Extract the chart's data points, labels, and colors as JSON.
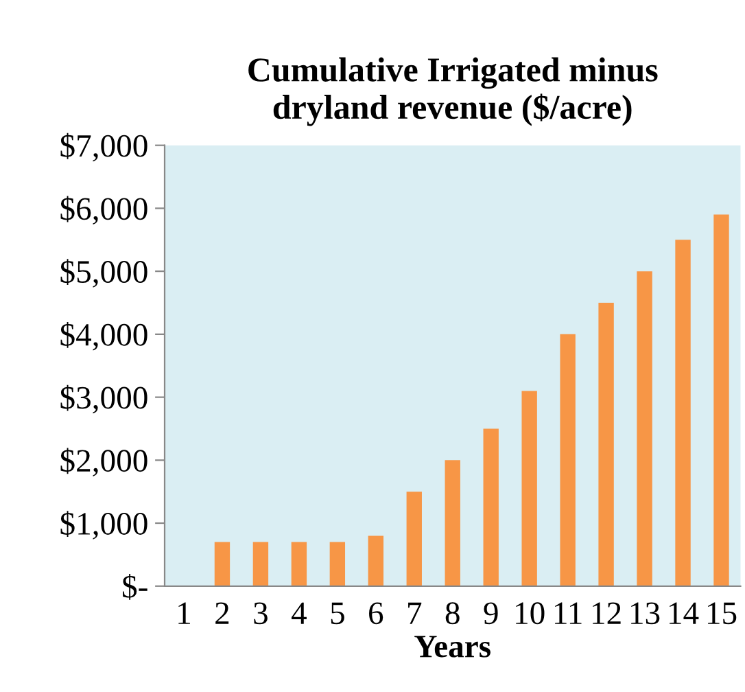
{
  "chart_data": {
    "type": "bar",
    "title": "Cumulative Irrigated minus\ndryland revenue ($/acre)",
    "xlabel": "Years",
    "categories": [
      "1",
      "2",
      "3",
      "4",
      "5",
      "6",
      "7",
      "8",
      "9",
      "10",
      "11",
      "12",
      "13",
      "14",
      "15"
    ],
    "values": [
      0,
      700,
      700,
      700,
      700,
      800,
      1500,
      2000,
      2500,
      3100,
      4000,
      4500,
      5000,
      5500,
      5900
    ],
    "color": "#f79646",
    "ylim": [
      0,
      7000
    ],
    "yticks": [
      {
        "value": 0,
        "label": "$-"
      },
      {
        "value": 1000,
        "label": "$1,000"
      },
      {
        "value": 2000,
        "label": "$2,000"
      },
      {
        "value": 3000,
        "label": "$3,000"
      },
      {
        "value": 4000,
        "label": "$4,000"
      },
      {
        "value": 5000,
        "label": "$5,000"
      },
      {
        "value": 6000,
        "label": "$6,000"
      },
      {
        "value": 7000,
        "label": "$7,000"
      }
    ],
    "grid": false
  }
}
